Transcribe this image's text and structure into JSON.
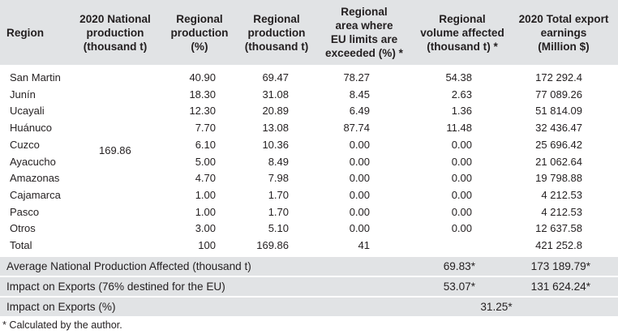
{
  "headers": {
    "region": "Region",
    "national": [
      "2020 National",
      "production",
      "(thousand t)"
    ],
    "regional_pct": [
      "Regional",
      "production",
      "(%)"
    ],
    "regional_thousand": [
      "Regional",
      "production",
      "(thousand t)"
    ],
    "area_exceeded": [
      "Regional",
      "area where",
      "EU limits are",
      "exceeded (%) *"
    ],
    "volume_affected": [
      "Regional",
      "volume affected",
      "(thousand t) *"
    ],
    "export_earnings": [
      "2020 Total export",
      "earnings",
      "(Million $)"
    ]
  },
  "national_production": "169.86",
  "rows": [
    {
      "region": "San Martin",
      "pct": "40.90",
      "thousand": "69.47",
      "area": "78.27",
      "volume": "54.38",
      "earnings": "172 292.4"
    },
    {
      "region": "Junín",
      "pct": "18.30",
      "thousand": "31.08",
      "area": "8.45",
      "volume": "2.63",
      "earnings": "77 089.26"
    },
    {
      "region": "Ucayali",
      "pct": "12.30",
      "thousand": "20.89",
      "area": "6.49",
      "volume": "1.36",
      "earnings": "51 814.09"
    },
    {
      "region": "Huánuco",
      "pct": "7.70",
      "thousand": "13.08",
      "area": "87.74",
      "volume": "11.48",
      "earnings": "32 436.47"
    },
    {
      "region": "Cuzco",
      "pct": "6.10",
      "thousand": "10.36",
      "area": "0.00",
      "volume": "0.00",
      "earnings": "25 696.42"
    },
    {
      "region": "Ayacucho",
      "pct": "5.00",
      "thousand": "8.49",
      "area": "0.00",
      "volume": "0.00",
      "earnings": "21 062.64"
    },
    {
      "region": "Amazonas",
      "pct": "4.70",
      "thousand": "7.98",
      "area": "0.00",
      "volume": "0.00",
      "earnings": "19 798.88"
    },
    {
      "region": "Cajamarca",
      "pct": "1.00",
      "thousand": "1.70",
      "area": "0.00",
      "volume": "0.00",
      "earnings": "4 212.53"
    },
    {
      "region": "Pasco",
      "pct": "1.00",
      "thousand": "1.70",
      "area": "0.00",
      "volume": "0.00",
      "earnings": "4 212.53"
    },
    {
      "region": "Otros",
      "pct": "3.00",
      "thousand": "5.10",
      "area": "0.00",
      "volume": "0.00",
      "earnings": "12 637.58"
    },
    {
      "region": "Total",
      "pct": "100",
      "thousand": "169.86",
      "area": "41",
      "volume": "",
      "earnings": "421 252.8"
    }
  ],
  "summary": {
    "avg_label": "Average National Production Affected (thousand t)",
    "avg_volume": "69.83*",
    "avg_earnings": "173 189.79*",
    "exports_label": "Impact on Exports (76% destined for the EU)",
    "exports_volume": "53.07*",
    "exports_earnings": "131 624.24*",
    "pct_label": "Impact on Exports (%)",
    "pct_value": "31.25*"
  },
  "footnote": "* Calculated by the author."
}
